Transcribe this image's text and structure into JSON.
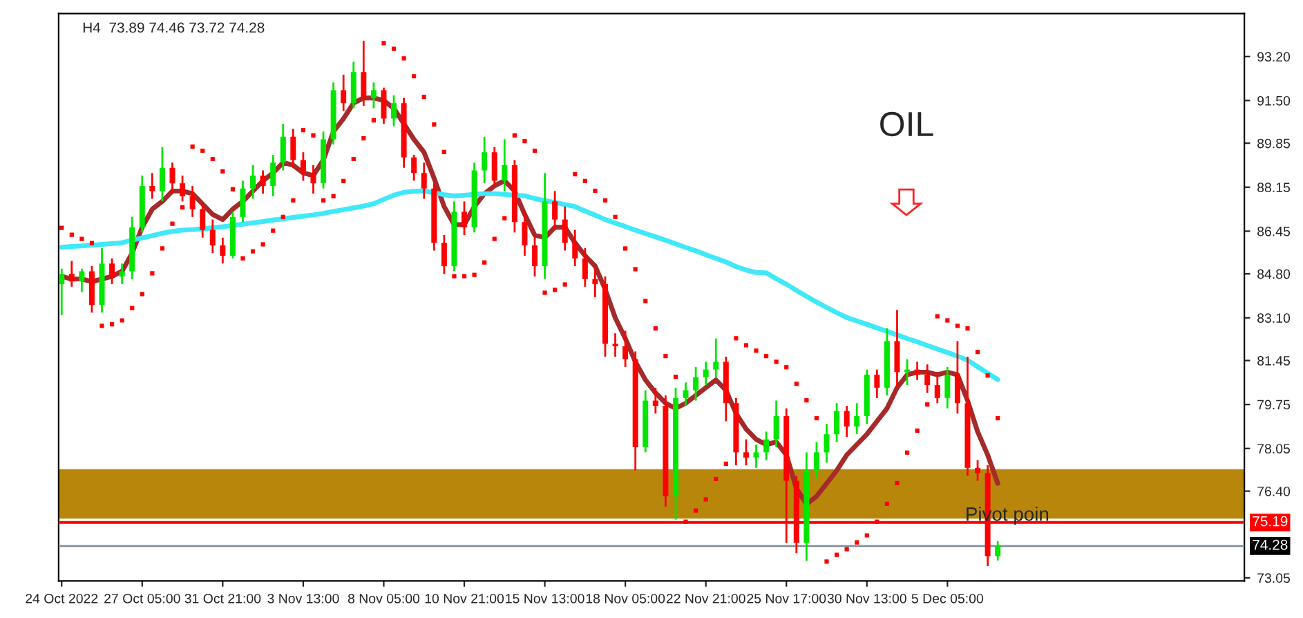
{
  "chart_data": {
    "type": "candlestick",
    "title": "H4  73.89 74.46 73.72 74.28",
    "annotations": [
      "OIL",
      "Pivot poin"
    ],
    "categories": [
      "24 Oct 2022",
      null,
      null,
      null,
      null,
      null,
      null,
      null,
      "27 Oct 05:00",
      null,
      null,
      null,
      null,
      null,
      null,
      null,
      "31 Oct 21:00",
      null,
      null,
      null,
      null,
      null,
      null,
      null,
      "3 Nov 13:00",
      null,
      null,
      null,
      null,
      null,
      null,
      null,
      "8 Nov 05:00",
      null,
      null,
      null,
      null,
      null,
      null,
      null,
      "10 Nov 21:00",
      null,
      null,
      null,
      null,
      null,
      null,
      null,
      "15 Nov 13:00",
      null,
      null,
      null,
      null,
      null,
      null,
      null,
      "18 Nov 05:00",
      null,
      null,
      null,
      null,
      null,
      null,
      null,
      "22 Nov 21:00",
      null,
      null,
      null,
      null,
      null,
      null,
      null,
      "25 Nov 17:00",
      null,
      null,
      null,
      null,
      null,
      null,
      null,
      "30 Nov 13:00",
      null,
      null,
      null,
      null,
      null,
      null,
      null,
      "5 Dec 05:00",
      null,
      null,
      null,
      null,
      null
    ],
    "ohlc": [
      [
        84.4,
        85.0,
        83.2,
        84.8
      ],
      [
        84.8,
        85.3,
        84.3,
        84.5
      ],
      [
        84.5,
        85.0,
        84.1,
        84.9
      ],
      [
        84.9,
        85.1,
        83.3,
        83.6
      ],
      [
        83.6,
        85.8,
        83.3,
        85.2
      ],
      [
        85.2,
        85.4,
        84.4,
        84.7
      ],
      [
        84.7,
        85.2,
        84.4,
        84.9
      ],
      [
        84.9,
        87.0,
        84.6,
        86.6
      ],
      [
        86.6,
        88.6,
        86.4,
        88.2
      ],
      [
        88.2,
        88.7,
        87.7,
        88.0
      ],
      [
        88.0,
        89.7,
        87.6,
        88.9
      ],
      [
        88.9,
        89.1,
        87.9,
        88.3
      ],
      [
        88.3,
        88.6,
        87.6,
        87.8
      ],
      [
        87.8,
        88.2,
        87.0,
        87.3
      ],
      [
        87.3,
        87.5,
        86.2,
        86.5
      ],
      [
        86.5,
        86.9,
        85.6,
        85.9
      ],
      [
        85.9,
        86.2,
        85.2,
        85.5
      ],
      [
        85.5,
        87.2,
        85.4,
        87.0
      ],
      [
        87.0,
        88.4,
        86.8,
        88.1
      ],
      [
        88.1,
        89.0,
        87.7,
        88.6
      ],
      [
        88.6,
        88.8,
        87.9,
        88.2
      ],
      [
        88.2,
        89.4,
        87.8,
        89.1
      ],
      [
        89.1,
        90.6,
        88.8,
        90.1
      ],
      [
        90.1,
        90.4,
        88.9,
        89.2
      ],
      [
        89.2,
        89.5,
        88.4,
        88.7
      ],
      [
        88.7,
        89.0,
        87.9,
        88.3
      ],
      [
        88.3,
        90.3,
        88.1,
        90.0
      ],
      [
        90.0,
        92.2,
        89.8,
        91.9
      ],
      [
        91.9,
        92.5,
        91.1,
        91.4
      ],
      [
        91.4,
        93.0,
        91.2,
        92.6
      ],
      [
        92.6,
        93.8,
        91.3,
        91.6
      ],
      [
        91.6,
        92.2,
        91.2,
        91.9
      ],
      [
        91.9,
        92.0,
        90.6,
        90.8
      ],
      [
        90.8,
        91.7,
        90.5,
        91.4
      ],
      [
        91.4,
        91.6,
        88.9,
        89.3
      ],
      [
        89.3,
        89.4,
        88.4,
        88.7
      ],
      [
        88.7,
        89.1,
        87.7,
        88.1
      ],
      [
        88.1,
        88.3,
        85.7,
        86.0
      ],
      [
        86.0,
        86.3,
        84.8,
        85.1
      ],
      [
        85.1,
        87.6,
        84.9,
        87.2
      ],
      [
        87.2,
        87.6,
        86.3,
        86.6
      ],
      [
        86.6,
        89.1,
        86.4,
        88.8
      ],
      [
        88.8,
        90.1,
        88.3,
        89.5
      ],
      [
        89.5,
        89.7,
        88.2,
        88.4
      ],
      [
        88.4,
        90.0,
        88.0,
        89.0
      ],
      [
        89.0,
        89.2,
        86.4,
        86.8
      ],
      [
        86.8,
        87.2,
        85.5,
        85.9
      ],
      [
        85.9,
        86.3,
        84.7,
        85.1
      ],
      [
        85.1,
        88.7,
        84.6,
        87.6
      ],
      [
        87.6,
        88.0,
        86.5,
        86.9
      ],
      [
        86.9,
        87.4,
        85.7,
        86.0
      ],
      [
        86.0,
        86.5,
        85.1,
        85.4
      ],
      [
        85.4,
        85.8,
        84.3,
        84.6
      ],
      [
        84.6,
        85.0,
        83.9,
        84.4
      ],
      [
        84.4,
        84.7,
        81.6,
        82.1
      ],
      [
        82.1,
        82.5,
        81.6,
        82.0
      ],
      [
        82.0,
        82.6,
        81.2,
        81.5
      ],
      [
        81.5,
        81.8,
        77.2,
        78.1
      ],
      [
        78.1,
        80.3,
        77.9,
        79.9
      ],
      [
        79.9,
        80.4,
        79.4,
        79.7
      ],
      [
        79.7,
        80.1,
        75.8,
        76.2
      ],
      [
        76.2,
        80.4,
        75.3,
        80.0
      ],
      [
        80.0,
        80.6,
        79.7,
        80.3
      ],
      [
        80.3,
        81.2,
        79.9,
        80.8
      ],
      [
        80.8,
        81.4,
        80.5,
        81.1
      ],
      [
        81.1,
        82.3,
        80.8,
        81.4
      ],
      [
        81.4,
        81.6,
        79.1,
        79.8
      ],
      [
        79.8,
        80.0,
        77.4,
        77.9
      ],
      [
        77.9,
        78.4,
        77.4,
        77.7
      ],
      [
        77.7,
        78.2,
        77.3,
        77.9
      ],
      [
        77.9,
        78.7,
        77.6,
        78.4
      ],
      [
        78.4,
        79.9,
        78.1,
        79.3
      ],
      [
        79.3,
        79.6,
        74.4,
        76.8
      ],
      [
        76.8,
        77.0,
        74.0,
        74.4
      ],
      [
        74.4,
        77.9,
        73.7,
        77.2
      ],
      [
        77.2,
        78.3,
        76.9,
        77.9
      ],
      [
        77.9,
        79.0,
        77.5,
        78.6
      ],
      [
        78.6,
        79.8,
        78.3,
        79.5
      ],
      [
        79.5,
        79.7,
        78.5,
        78.9
      ],
      [
        78.9,
        79.8,
        78.6,
        79.3
      ],
      [
        79.3,
        81.1,
        79.0,
        80.9
      ],
      [
        80.9,
        81.1,
        80.0,
        80.4
      ],
      [
        80.4,
        82.7,
        80.1,
        82.2
      ],
      [
        82.2,
        83.4,
        80.4,
        81.0
      ],
      [
        81.0,
        81.5,
        80.5,
        81.1
      ],
      [
        81.1,
        81.4,
        80.7,
        80.9
      ],
      [
        80.9,
        81.3,
        80.2,
        80.5
      ],
      [
        80.5,
        81.0,
        79.8,
        80.0
      ],
      [
        80.0,
        81.2,
        79.6,
        80.9
      ],
      [
        80.9,
        82.2,
        79.4,
        79.8
      ],
      [
        79.8,
        81.6,
        77.0,
        77.3
      ],
      [
        77.3,
        77.6,
        76.8,
        77.1
      ],
      [
        77.1,
        77.4,
        73.5,
        73.89
      ],
      [
        73.89,
        74.46,
        73.72,
        74.28
      ]
    ],
    "colors": [
      "#00e600",
      "#ff0000",
      "#00e600",
      "#ff0000",
      "#00e600",
      "#ff0000",
      "#00e600",
      "#00e600",
      "#00e600",
      "#ff0000",
      "#00e600",
      "#ff0000",
      "#ff0000",
      "#ff0000",
      "#ff0000",
      "#ff0000",
      "#ff0000",
      "#00e600",
      "#00e600",
      "#00e600",
      "#ff0000",
      "#00e600",
      "#00e600",
      "#ff0000",
      "#ff0000",
      "#ff0000",
      "#00e600",
      "#00e600",
      "#ff0000",
      "#00e600",
      "#ff0000",
      "#00e600",
      "#ff0000",
      "#00e600",
      "#ff0000",
      "#ff0000",
      "#ff0000",
      "#ff0000",
      "#ff0000",
      "#00e600",
      "#ff0000",
      "#00e600",
      "#00e600",
      "#ff0000",
      "#00e600",
      "#ff0000",
      "#ff0000",
      "#ff0000",
      "#00e600",
      "#ff0000",
      "#ff0000",
      "#ff0000",
      "#ff0000",
      "#ff0000",
      "#ff0000",
      "#ff0000",
      "#ff0000",
      "#ff0000",
      "#00e600",
      "#ff0000",
      "#ff0000",
      "#00e600",
      "#00e600",
      "#00e600",
      "#00e600",
      "#00e600",
      "#ff0000",
      "#ff0000",
      "#ff0000",
      "#00e600",
      "#00e600",
      "#00e600",
      "#ff0000",
      "#ff0000",
      "#00e600",
      "#00e600",
      "#00e600",
      "#00e600",
      "#ff0000",
      "#00e600",
      "#00e600",
      "#ff0000",
      "#00e600",
      "#ff0000",
      "#00e600",
      "#ff0000",
      "#ff0000",
      "#ff0000",
      "#00e600",
      "#ff0000",
      "#ff0000",
      "#ff0000",
      "#ff0000",
      "#00e600"
    ],
    "series": [
      {
        "type": "line",
        "color": "#a52a2a",
        "values": [
          84.7,
          84.6,
          84.6,
          84.5,
          84.6,
          84.7,
          84.9,
          85.6,
          86.6,
          87.3,
          87.6,
          88.0,
          88.0,
          87.9,
          87.5,
          87.1,
          86.9,
          87.3,
          87.6,
          88.0,
          88.4,
          88.7,
          89.1,
          89.0,
          88.7,
          88.6,
          89.2,
          90.3,
          90.8,
          91.4,
          91.6,
          91.6,
          91.5,
          91.2,
          90.6,
          90.0,
          89.5,
          88.5,
          87.4,
          86.7,
          86.7,
          87.4,
          87.9,
          88.2,
          88.4,
          88.0,
          87.1,
          86.3,
          86.2,
          86.6,
          86.6,
          86.0,
          85.5,
          85.1,
          84.2,
          83.1,
          82.3,
          81.4,
          80.7,
          80.2,
          79.8,
          79.6,
          79.8,
          80.1,
          80.4,
          80.7,
          80.3,
          79.4,
          78.8,
          78.4,
          78.2,
          78.3,
          77.8,
          76.5,
          75.9,
          76.2,
          76.7,
          77.2,
          77.8,
          78.2,
          78.6,
          79.1,
          79.6,
          80.4,
          80.9,
          81.0,
          81.0,
          80.9,
          81.0,
          80.9,
          79.9,
          78.7,
          77.8,
          76.7
        ]
      },
      {
        "type": "line",
        "color": "#40e8f8",
        "values": [
          85.83,
          85.86,
          85.88,
          85.91,
          85.94,
          85.97,
          86.0,
          86.1,
          86.19,
          86.28,
          86.37,
          86.44,
          86.49,
          86.51,
          86.54,
          86.58,
          86.62,
          86.67,
          86.72,
          86.77,
          86.82,
          86.88,
          86.93,
          86.98,
          87.03,
          87.08,
          87.14,
          87.21,
          87.28,
          87.35,
          87.42,
          87.51,
          87.68,
          87.84,
          87.95,
          87.99,
          88.01,
          87.93,
          87.86,
          87.81,
          87.84,
          87.87,
          87.9,
          87.9,
          87.87,
          87.84,
          87.82,
          87.71,
          87.63,
          87.56,
          87.48,
          87.4,
          87.23,
          87.07,
          86.9,
          86.76,
          86.63,
          86.49,
          86.36,
          86.23,
          86.1,
          85.96,
          85.82,
          85.69,
          85.54,
          85.4,
          85.26,
          85.08,
          84.95,
          84.85,
          84.84,
          84.61,
          84.4,
          84.16,
          83.93,
          83.71,
          83.5,
          83.3,
          83.11,
          82.98,
          82.85,
          82.71,
          82.58,
          82.44,
          82.3,
          82.17,
          82.03,
          81.89,
          81.76,
          81.62,
          81.46,
          81.21,
          80.96,
          80.71
        ]
      },
      {
        "type": "scatter",
        "color": "#ff0000",
        "marker": "square",
        "values": [
          86.58,
          86.31,
          86.15,
          85.99,
          82.79,
          82.85,
          83.0,
          83.48,
          84.02,
          84.82,
          85.78,
          86.74,
          87.37,
          89.72,
          89.56,
          89.24,
          88.76,
          88.07,
          85.4,
          85.67,
          85.94,
          86.47,
          87.0,
          87.64,
          90.36,
          90.15,
          87.64,
          87.8,
          88.39,
          89.24,
          90.04,
          90.73,
          93.72,
          93.5,
          93.13,
          92.44,
          91.64,
          90.57,
          89.51,
          84.71,
          84.71,
          84.76,
          85.24,
          86.15,
          86.95,
          90.15,
          89.93,
          89.56,
          84.07,
          84.18,
          84.39,
          88.65,
          88.39,
          88.01,
          87.64,
          87.0,
          85.78,
          84.98,
          83.75,
          82.69,
          81.62,
          80.82,
          75.22,
          75.65,
          76.08,
          76.87,
          77.46,
          82.31,
          82.04,
          81.83,
          81.62,
          81.4,
          81.19,
          80.55,
          79.91,
          79.22,
          73.68,
          73.94,
          74.16,
          74.42,
          74.69,
          75.22,
          75.91,
          76.71,
          77.89,
          78.74,
          79.75,
          83.16,
          83.0,
          82.79,
          82.69,
          81.78,
          80.87,
          79.22
        ]
      }
    ],
    "ylim": [
      72.93,
      94.86
    ],
    "yticks": [
      {
        "value": 73.05,
        "label": "73.05"
      },
      {
        "value": 76.4,
        "label": "76.40"
      },
      {
        "value": 78.05,
        "label": "78.05"
      },
      {
        "value": 79.75,
        "label": "79.75"
      },
      {
        "value": 81.45,
        "label": "81.45"
      },
      {
        "value": 83.1,
        "label": "83.10"
      },
      {
        "value": 84.8,
        "label": "84.80"
      },
      {
        "value": 86.45,
        "label": "86.45"
      },
      {
        "value": 88.15,
        "label": "88.15"
      },
      {
        "value": 89.85,
        "label": "89.85"
      },
      {
        "value": 91.5,
        "label": "91.50"
      },
      {
        "value": 93.2,
        "label": "93.20"
      }
    ],
    "bands": [
      {
        "axis": "y",
        "from": 75.34,
        "to": 77.25,
        "color": "#b8860b"
      }
    ],
    "ref_lines": [
      {
        "axis": "y",
        "value": 75.19,
        "label": "75.19",
        "color": "#ff0000"
      },
      {
        "axis": "y",
        "value": 74.28,
        "label": "74.28",
        "color": "#8090a0"
      }
    ],
    "grid": false,
    "legend": false
  }
}
